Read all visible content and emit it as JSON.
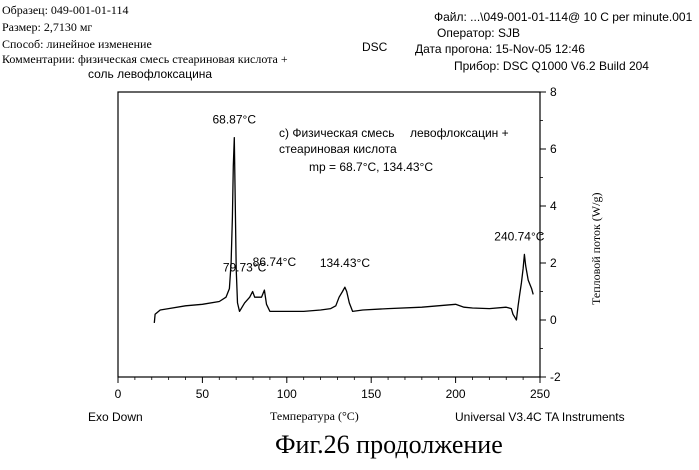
{
  "header": {
    "sample": "Образец: 049-001-01-114",
    "size": "Размер: 2,7130 мг",
    "method": "Способ: линейное изменение",
    "comments_line1": "Комментарии: физическая смесь стеариновая кислота +",
    "comments_line2": "соль левофлоксацина",
    "technique": "DSC",
    "file": "Файл: ...\\049-001-01-114@ 10 C per minute.001",
    "operator": "Оператор: SJB",
    "run_date": "Дата прогона: 15-Nov-05 12:46",
    "instrument": "Прибор: DSC Q1000 V6.2 Build 204"
  },
  "footer": {
    "exo": "Exo Down",
    "software": "Universal V3.4C TA Instruments"
  },
  "caption": "Фиг.26 продолжение",
  "chart_data": {
    "type": "line",
    "xlabel": "Температура (°C)",
    "ylabel": "Тепловой поток (W/g)",
    "xlim": [
      0,
      250
    ],
    "ylim": [
      -2,
      8
    ],
    "xticks": [
      "0",
      "50",
      "100",
      "150",
      "200",
      "250"
    ],
    "yticks": [
      "-2",
      "0",
      "2",
      "4",
      "6",
      "8"
    ],
    "annotation_line1": "с) Физическая смесь",
    "annotation_line1b": "левофлоксацин +",
    "annotation_line2": "стеариновая кислота",
    "annotation_line3": "mp = 68.7°C, 134.43°C",
    "peak_labels": [
      "68.87°C",
      "79.73°C",
      "86.74°C",
      "134.43°C",
      "240.74°C"
    ],
    "series": [
      {
        "x": [
          21.5,
          22,
          25,
          30,
          40,
          50,
          60,
          64,
          66,
          67,
          67.8,
          68.3,
          68.87,
          69.5,
          70,
          70.8,
          72,
          75,
          78,
          79.73,
          81,
          83,
          85,
          86.74,
          88,
          90,
          100,
          110,
          120,
          126,
          129,
          131,
          133,
          134.43,
          135.5,
          137,
          139,
          145,
          160,
          180,
          200,
          205,
          210,
          220,
          230,
          233,
          234,
          235,
          236,
          237,
          238,
          239,
          240,
          240.74,
          241.5,
          243,
          245,
          246
        ],
        "y": [
          -0.1,
          0.2,
          0.35,
          0.4,
          0.5,
          0.55,
          0.65,
          0.8,
          1.1,
          2.0,
          3.6,
          5.4,
          6.4,
          4.0,
          1.8,
          0.6,
          0.3,
          0.6,
          0.8,
          1.0,
          0.8,
          0.8,
          0.8,
          1.05,
          0.55,
          0.3,
          0.3,
          0.3,
          0.35,
          0.4,
          0.5,
          0.8,
          1.0,
          1.15,
          1.0,
          0.6,
          0.3,
          0.35,
          0.4,
          0.45,
          0.55,
          0.45,
          0.42,
          0.4,
          0.45,
          0.4,
          0.2,
          0.1,
          0.0,
          0.5,
          0.9,
          1.3,
          1.8,
          2.3,
          1.9,
          1.4,
          1.1,
          0.9
        ]
      }
    ]
  }
}
